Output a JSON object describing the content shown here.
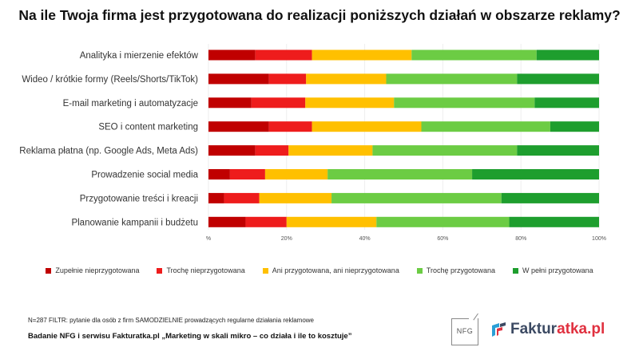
{
  "chart_data": {
    "type": "bar",
    "orientation": "horizontal",
    "stacked": true,
    "title": "Na ile Twoja firma jest przygotowana do realizacji poniższych działań w obszarze reklamy?",
    "categories": [
      "Analityka i mierzenie efektów",
      "Wideo / krótkie formy (Reels/Shorts/TikTok)",
      "E-mail marketing i automatyzacje",
      "SEO i content marketing",
      "Reklama płatna (np. Google Ads, Meta Ads)",
      "Prowadzenie social media",
      "Przygotowanie treści i kreacji",
      "Planowanie kampanii i budżetu"
    ],
    "series": [
      {
        "name": "Zupełnie nieprzygotowana",
        "color": "#c00000",
        "values": [
          12,
          15.5,
          11,
          15.5,
          12,
          5.5,
          4,
          9.5
        ]
      },
      {
        "name": "Trochę nieprzygotowana",
        "color": "#ee1c1c",
        "values": [
          14.5,
          9.5,
          13.8,
          11,
          8.5,
          9,
          9,
          10.5
        ]
      },
      {
        "name": "Ani przygotowana, ani nieprzygotowana",
        "color": "#ffc000",
        "values": [
          25.5,
          20.5,
          22.7,
          28,
          21.5,
          16,
          18.5,
          23
        ]
      },
      {
        "name": "Trochę przygotowana",
        "color": "#6ccc44",
        "values": [
          32,
          33.5,
          36,
          33,
          37,
          37,
          43.5,
          34
        ]
      },
      {
        "name": "W pełni przygotowana",
        "color": "#1e9e2e",
        "values": [
          16,
          21,
          16.5,
          12.5,
          21,
          32.5,
          25,
          23
        ]
      }
    ],
    "xlim": [
      0,
      100
    ],
    "xticks": [
      "%",
      "20%",
      "40%",
      "60%",
      "80%",
      "100%"
    ],
    "legend_position": "bottom"
  },
  "footer": {
    "note": "N=287 FILTR: pytanie dla osób z firm SAMODZIELNIE prowadzących regularne działania reklamowe",
    "source": "Badanie NFG i serwisu Fakturatka.pl „Marketing w skali mikro – co działa i ile to kosztuje”"
  },
  "logos": {
    "nfg": "NFG",
    "fakturatka_part1": "Faktur",
    "fakturatka_part2": "atka.pl"
  }
}
